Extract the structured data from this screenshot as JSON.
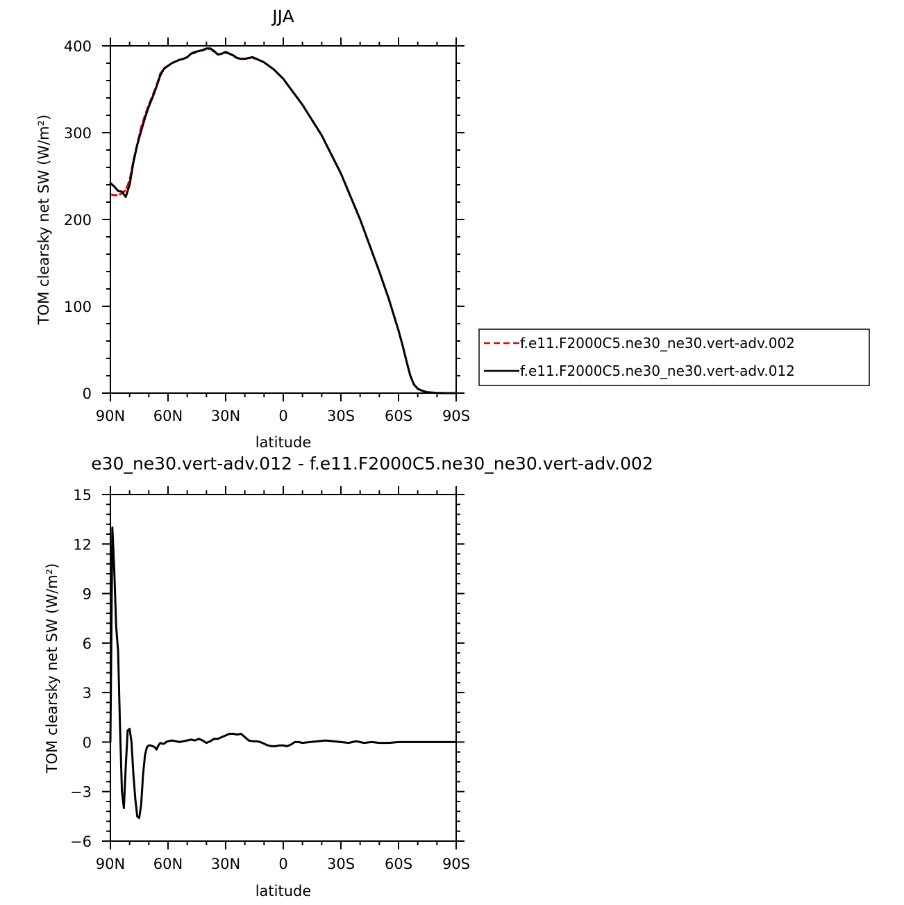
{
  "chart_data": [
    {
      "type": "line",
      "title": "JJA",
      "xlabel": "latitude",
      "ylabel": "TOM clearsky net SW (W/m²)",
      "xlim": [
        90,
        -90
      ],
      "ylim": [
        0,
        400
      ],
      "xticks": [
        90,
        60,
        30,
        0,
        -30,
        -60,
        -90
      ],
      "xtick_labels": [
        "90N",
        "60N",
        "30N",
        "0",
        "30S",
        "60S",
        "90S"
      ],
      "yticks": [
        0,
        100,
        200,
        300,
        400
      ],
      "ytick_labels": [
        "0",
        "100",
        "200",
        "300",
        "400"
      ],
      "legend_position": "right",
      "series": [
        {
          "name": "f.e11.F2000C5.ne30_ne30.vert-adv.002",
          "color": "#e8000b",
          "dash": "dashed",
          "x": [
            90,
            88,
            86,
            84,
            82,
            80,
            78,
            76,
            74,
            72,
            70,
            68,
            66,
            64,
            62,
            60,
            58,
            56,
            54,
            52,
            50,
            48,
            46,
            44,
            42,
            40,
            38,
            36,
            34,
            32,
            30,
            28,
            26,
            24,
            22,
            20,
            18,
            16,
            14,
            12,
            10,
            5,
            0,
            -10,
            -20,
            -30,
            -40,
            -50,
            -55,
            -60,
            -62,
            -64,
            -66,
            -68,
            -70,
            -72,
            -75,
            -80,
            -85,
            -90
          ],
          "y": [
            229,
            228,
            228,
            230,
            234,
            245,
            268,
            287,
            306,
            320,
            332,
            343,
            354,
            368,
            374,
            377,
            380,
            382,
            384,
            385,
            387,
            391,
            392,
            394,
            395,
            396,
            397,
            393,
            390,
            391,
            392,
            391,
            388,
            386,
            385,
            385,
            386,
            386,
            385,
            383,
            381,
            373,
            362,
            332,
            297,
            253,
            200,
            140,
            108,
            72,
            56,
            38,
            21,
            10,
            5,
            3,
            1,
            0.2,
            0,
            0
          ]
        },
        {
          "name": "f.e11.F2000C5.ne30_ne30.vert-adv.012",
          "color": "#000000",
          "dash": "solid",
          "x": [
            90,
            88,
            86,
            84,
            82,
            80,
            78,
            76,
            74,
            72,
            70,
            68,
            66,
            64,
            62,
            60,
            58,
            56,
            54,
            52,
            50,
            48,
            46,
            44,
            42,
            40,
            38,
            36,
            34,
            32,
            30,
            28,
            26,
            24,
            22,
            20,
            18,
            16,
            14,
            12,
            10,
            5,
            0,
            -10,
            -20,
            -30,
            -40,
            -50,
            -55,
            -60,
            -62,
            -64,
            -66,
            -68,
            -70,
            -72,
            -75,
            -80,
            -85,
            -90
          ],
          "y": [
            242,
            238,
            233,
            232,
            226,
            240,
            266,
            286,
            302,
            317,
            330,
            341,
            353,
            366,
            374,
            377,
            380,
            382,
            384,
            385,
            387,
            391,
            393,
            394,
            395,
            397,
            397,
            394,
            390,
            391,
            393,
            391,
            389,
            386,
            385,
            385,
            386,
            387,
            385,
            383,
            381,
            373,
            362,
            332,
            297,
            253,
            200,
            140,
            108,
            72,
            56,
            38,
            21,
            10,
            5,
            3,
            1,
            0.2,
            0,
            0
          ]
        }
      ]
    },
    {
      "type": "line",
      "title": "e30_ne30.vert-adv.012 - f.e11.F2000C5.ne30_ne30.vert-adv.002",
      "xlabel": "latitude",
      "ylabel": "TOM clearsky net SW (W/m²)",
      "xlim": [
        90,
        -90
      ],
      "ylim": [
        -6,
        15
      ],
      "xticks": [
        90,
        60,
        30,
        0,
        -30,
        -60,
        -90
      ],
      "xtick_labels": [
        "90N",
        "60N",
        "30N",
        "0",
        "30S",
        "60S",
        "90S"
      ],
      "yticks": [
        -6,
        -3,
        0,
        3,
        6,
        9,
        12,
        15
      ],
      "ytick_labels": [
        "−6",
        "−3",
        "0",
        "3",
        "6",
        "9",
        "12",
        "15"
      ],
      "series": [
        {
          "color": "#000000",
          "dash": "solid",
          "x": [
            90,
            89,
            88,
            87,
            86,
            85,
            84,
            83,
            82,
            81,
            80,
            79,
            78,
            77,
            76,
            75,
            74,
            73,
            72,
            71,
            70,
            69,
            68,
            67,
            66,
            65,
            64,
            63,
            62,
            61,
            60,
            58,
            56,
            54,
            52,
            50,
            48,
            46,
            44,
            42,
            40,
            38,
            36,
            34,
            32,
            30,
            28,
            26,
            24,
            22,
            20,
            18,
            16,
            14,
            12,
            10,
            8,
            6,
            4,
            2,
            0,
            -2,
            -4,
            -6,
            -8,
            -10,
            -14,
            -18,
            -22,
            -26,
            -30,
            -34,
            -38,
            -42,
            -46,
            -50,
            -55,
            -60,
            -65,
            -70,
            -75,
            -80,
            -85,
            -90
          ],
          "y": [
            0.0,
            13.0,
            10.5,
            7.0,
            5.5,
            1.0,
            -3.0,
            -4.0,
            -1.5,
            0.7,
            0.8,
            0.0,
            -2.0,
            -3.5,
            -4.5,
            -4.6,
            -3.8,
            -2.0,
            -0.8,
            -0.3,
            -0.2,
            -0.2,
            -0.25,
            -0.3,
            -0.45,
            -0.2,
            -0.05,
            -0.1,
            -0.1,
            0.0,
            0.05,
            0.1,
            0.05,
            0.0,
            0.05,
            0.1,
            0.15,
            0.1,
            0.2,
            0.1,
            -0.05,
            0.05,
            0.2,
            0.2,
            0.3,
            0.4,
            0.5,
            0.5,
            0.45,
            0.5,
            0.3,
            0.1,
            0.05,
            0.05,
            0.0,
            -0.1,
            -0.2,
            -0.25,
            -0.25,
            -0.2,
            -0.2,
            -0.25,
            -0.15,
            0.0,
            0.0,
            -0.05,
            0.0,
            0.05,
            0.1,
            0.05,
            0.0,
            -0.05,
            0.05,
            -0.05,
            0.0,
            -0.05,
            -0.05,
            0.0,
            0.0,
            0.0,
            0.0,
            0.0,
            0.0,
            0.0
          ]
        }
      ]
    }
  ]
}
